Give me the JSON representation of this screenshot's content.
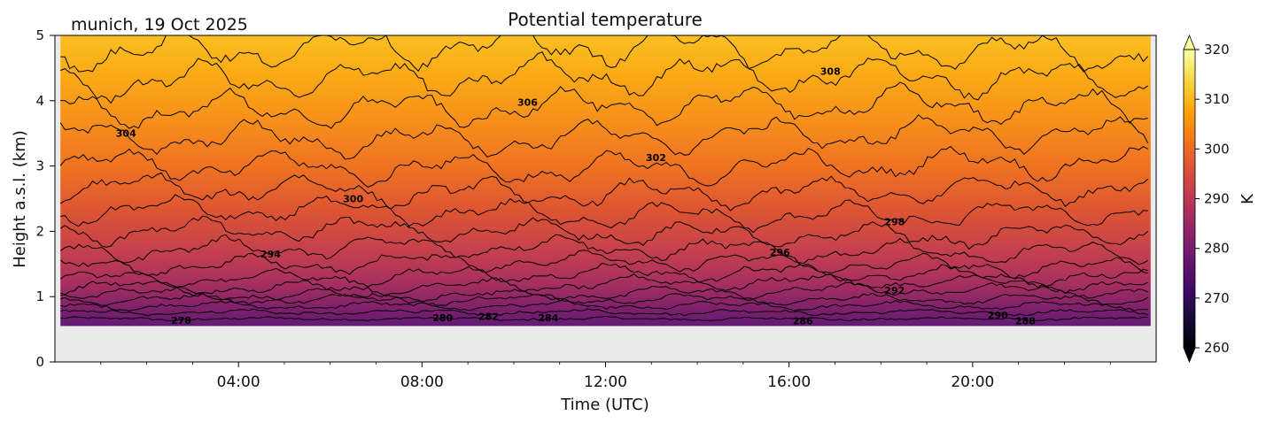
{
  "chart_data": {
    "type": "heatmap",
    "title": "Potential temperature",
    "location_label": "munich, 19 Oct 2025",
    "xlabel": "Time (UTC)",
    "ylabel": "Height a.s.l. (km)",
    "xlim_hours": [
      0,
      24
    ],
    "ylim_km": [
      0,
      5
    ],
    "x_ticks": [
      {
        "hour": 4,
        "label": "04:00"
      },
      {
        "hour": 8,
        "label": "08:00"
      },
      {
        "hour": 12,
        "label": "12:00"
      },
      {
        "hour": 16,
        "label": "16:00"
      },
      {
        "hour": 20,
        "label": "20:00"
      }
    ],
    "y_ticks": [
      {
        "value": 0,
        "label": "0"
      },
      {
        "value": 1,
        "label": "1"
      },
      {
        "value": 2,
        "label": "2"
      },
      {
        "value": 3,
        "label": "3"
      },
      {
        "value": 4,
        "label": "4"
      },
      {
        "value": 5,
        "label": "5"
      }
    ],
    "data_extent": {
      "start_hour": 0.12,
      "end_hour": 23.88,
      "bottom_km": 0.55
    },
    "colorbar": {
      "label": "K",
      "min": 260,
      "max": 320,
      "extend": "both",
      "colormap": "inferno",
      "ticks": [
        {
          "value": 260,
          "label": "260"
        },
        {
          "value": 270,
          "label": "270"
        },
        {
          "value": 280,
          "label": "280"
        },
        {
          "value": 290,
          "label": "290"
        },
        {
          "value": 300,
          "label": "300"
        },
        {
          "value": 310,
          "label": "310"
        },
        {
          "value": 320,
          "label": "320"
        }
      ]
    },
    "contour_levels": [
      {
        "value": 278,
        "height_km": 0.66
      },
      {
        "value": 280,
        "height_km": 0.76
      },
      {
        "value": 282,
        "height_km": 0.86
      },
      {
        "value": 284,
        "height_km": 0.96
      },
      {
        "value": 286,
        "height_km": 1.06
      },
      {
        "value": 288,
        "height_km": 1.18
      },
      {
        "value": 290,
        "height_km": 1.32
      },
      {
        "value": 292,
        "height_km": 1.5
      },
      {
        "value": 294,
        "height_km": 1.72
      },
      {
        "value": 296,
        "height_km": 1.98
      },
      {
        "value": 298,
        "height_km": 2.28
      },
      {
        "value": 300,
        "height_km": 2.62
      },
      {
        "value": 302,
        "height_km": 3.0
      },
      {
        "value": 304,
        "height_km": 3.45
      },
      {
        "value": 306,
        "height_km": 3.9
      },
      {
        "value": 308,
        "height_km": 4.35
      },
      {
        "value": 310,
        "height_km": 4.8
      }
    ],
    "contour_labels": [
      {
        "text": "278",
        "hour": 2.75,
        "km": 0.64
      },
      {
        "text": "280",
        "hour": 8.45,
        "km": 0.68
      },
      {
        "text": "282",
        "hour": 9.45,
        "km": 0.7
      },
      {
        "text": "284",
        "hour": 10.75,
        "km": 0.68
      },
      {
        "text": "286",
        "hour": 16.3,
        "km": 0.63
      },
      {
        "text": "288",
        "hour": 21.15,
        "km": 0.63
      },
      {
        "text": "290",
        "hour": 20.55,
        "km": 0.72
      },
      {
        "text": "292",
        "hour": 18.3,
        "km": 1.1
      },
      {
        "text": "294",
        "hour": 4.7,
        "km": 1.65
      },
      {
        "text": "296",
        "hour": 15.8,
        "km": 1.68
      },
      {
        "text": "298",
        "hour": 18.3,
        "km": 2.15
      },
      {
        "text": "300",
        "hour": 6.5,
        "km": 2.5
      },
      {
        "text": "302",
        "hour": 13.1,
        "km": 3.13
      },
      {
        "text": "304",
        "hour": 1.55,
        "km": 3.5
      },
      {
        "text": "306",
        "hour": 10.3,
        "km": 3.98
      },
      {
        "text": "308",
        "hour": 16.9,
        "km": 4.45
      }
    ]
  }
}
